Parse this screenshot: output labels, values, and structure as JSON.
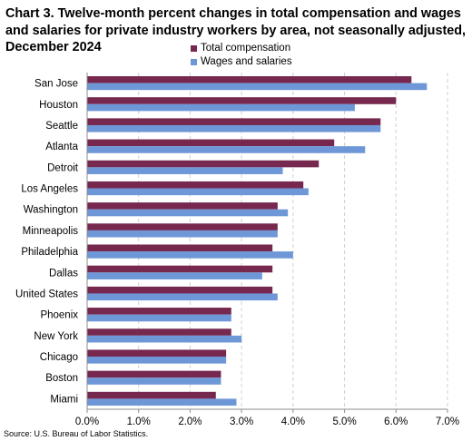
{
  "chart_data": {
    "type": "bar",
    "orientation": "horizontal",
    "title": "Chart 3. Twelve-month percent changes in total compensation and wages and salaries for private industry workers by area, not seasonally adjusted, December 2024",
    "categories": [
      "San Jose",
      "Houston",
      "Seattle",
      "Atlanta",
      "Detroit",
      "Los Angeles",
      "Washington",
      "Minneapolis",
      "Philadelphia",
      "Dallas",
      "United States",
      "Phoenix",
      "New York",
      "Chicago",
      "Boston",
      "Miami"
    ],
    "series": [
      {
        "name": "Total compensation",
        "color": "#77284f",
        "values": [
          6.3,
          6.0,
          5.7,
          4.8,
          4.5,
          4.2,
          3.7,
          3.7,
          3.6,
          3.6,
          3.6,
          2.8,
          2.8,
          2.7,
          2.6,
          2.5
        ]
      },
      {
        "name": "Wages and salaries",
        "color": "#6e97d8",
        "values": [
          6.6,
          5.2,
          5.7,
          5.4,
          3.8,
          4.3,
          3.9,
          3.7,
          4.0,
          3.4,
          3.7,
          2.8,
          3.0,
          2.7,
          2.6,
          2.9
        ]
      }
    ],
    "xlim": [
      0,
      7.0
    ],
    "xticks": [
      "0.0%",
      "1.0%",
      "2.0%",
      "3.0%",
      "4.0%",
      "5.0%",
      "6.0%",
      "7.0%"
    ],
    "xlabel": "",
    "ylabel": "",
    "grid": "vertical-dashed",
    "legend": "top-right"
  },
  "source": "Source: U.S. Bureau of Labor Statistics."
}
